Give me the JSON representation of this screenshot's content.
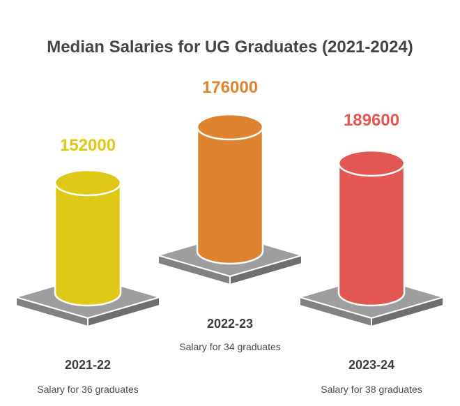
{
  "chart_data": {
    "type": "bar",
    "title": "Median Salaries for UG Graduates (2021-2024)",
    "categories": [
      "2021-22",
      "2022-23",
      "2023-24"
    ],
    "values": [
      152000,
      176000,
      189600
    ],
    "notes": [
      "Salary for 36 graduates",
      "Salary for 34 graduates",
      "Salary for 38 graduates"
    ],
    "colors": [
      "#dfc916",
      "#de8430",
      "#e35752"
    ],
    "pedestal_color": "#9e9e9e",
    "style": "3d-cylinder-on-pedestal"
  }
}
